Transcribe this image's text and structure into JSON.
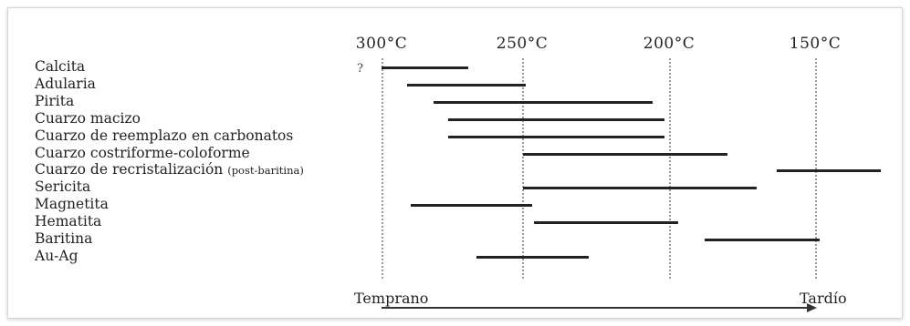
{
  "temperatures": [
    "300°C",
    "250°C",
    "200°C",
    "150°C"
  ],
  "question_mark": "?",
  "minerals": [
    {
      "name": "Calcita",
      "note": "",
      "start": 300,
      "end": 270
    },
    {
      "name": "Adularia",
      "note": "",
      "start": 291,
      "end": 250
    },
    {
      "name": "Pirita",
      "note": "",
      "start": 282,
      "end": 206
    },
    {
      "name": "Cuarzo macizo",
      "note": "",
      "start": 277,
      "end": 202
    },
    {
      "name": "Cuarzo de reemplazo en carbonatos",
      "note": "",
      "start": 277,
      "end": 202
    },
    {
      "name": "Cuarzo costriforme-coloforme",
      "note": "",
      "start": 251,
      "end": 180
    },
    {
      "name": "Cuarzo de recristalización ",
      "note": "(post-baritina)",
      "start": 163,
      "end": 127
    },
    {
      "name": "Sericita",
      "note": "",
      "start": 251,
      "end": 170
    },
    {
      "name": "Magnetita",
      "note": "",
      "start": 290,
      "end": 248
    },
    {
      "name": "Hematita",
      "note": "",
      "start": 247,
      "end": 197
    },
    {
      "name": "Baritina",
      "note": "",
      "start": 188,
      "end": 148
    },
    {
      "name": "Au-Ag",
      "note": "",
      "start": 267,
      "end": 228
    }
  ],
  "stages": {
    "early": "Temprano",
    "late": "Tardío"
  }
}
